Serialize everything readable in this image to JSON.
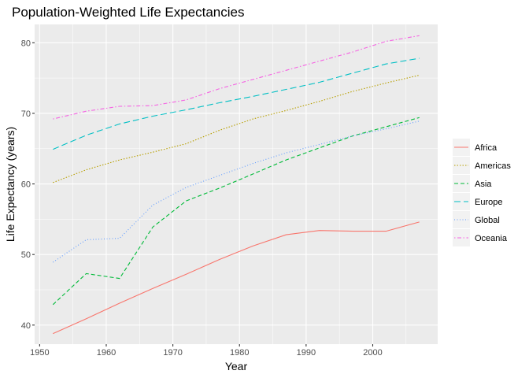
{
  "chart_data": {
    "type": "line",
    "title": "Population-Weighted Life Expectancies",
    "xlabel": "Year",
    "ylabel": "Life Expectancy (years)",
    "x": [
      1952,
      1957,
      1962,
      1967,
      1972,
      1977,
      1982,
      1987,
      1992,
      1997,
      2002,
      2007
    ],
    "xlim": [
      1949.25,
      2009.75
    ],
    "ylim": [
      37.3,
      82.6
    ],
    "x_ticks": [
      1950,
      1960,
      1970,
      1980,
      1990,
      2000
    ],
    "y_ticks": [
      40,
      50,
      60,
      70,
      80
    ],
    "grid": true,
    "legend_position": "right",
    "series": [
      {
        "name": "Africa",
        "color": "#F8766D",
        "dash": "solid",
        "values": [
          38.8,
          40.9,
          43.1,
          45.2,
          47.2,
          49.3,
          51.2,
          52.8,
          53.4,
          53.3,
          53.3,
          54.6
        ]
      },
      {
        "name": "Americas",
        "color": "#B79F00",
        "dash": "dotted",
        "values": [
          60.2,
          62.0,
          63.4,
          64.5,
          65.7,
          67.6,
          69.2,
          70.4,
          71.7,
          73.1,
          74.3,
          75.4
        ]
      },
      {
        "name": "Asia",
        "color": "#00BA38",
        "dash": "dashed",
        "values": [
          42.9,
          47.3,
          46.6,
          53.9,
          57.6,
          59.4,
          61.4,
          63.4,
          65.1,
          66.8,
          68.1,
          69.4
        ]
      },
      {
        "name": "Europe",
        "color": "#00BFC4",
        "dash": "longdash",
        "values": [
          64.9,
          66.9,
          68.5,
          69.6,
          70.5,
          71.5,
          72.4,
          73.4,
          74.4,
          75.7,
          77.0,
          77.8
        ]
      },
      {
        "name": "Global",
        "color": "#619CFF",
        "dash": "finedot",
        "values": [
          48.9,
          52.1,
          52.3,
          57.0,
          59.5,
          61.2,
          62.9,
          64.4,
          65.6,
          66.8,
          67.8,
          68.9
        ]
      },
      {
        "name": "Oceania",
        "color": "#F564E3",
        "dash": "dotdash",
        "values": [
          69.2,
          70.3,
          71.0,
          71.1,
          71.9,
          73.5,
          74.8,
          76.1,
          77.4,
          78.7,
          80.2,
          81.0
        ]
      }
    ]
  }
}
